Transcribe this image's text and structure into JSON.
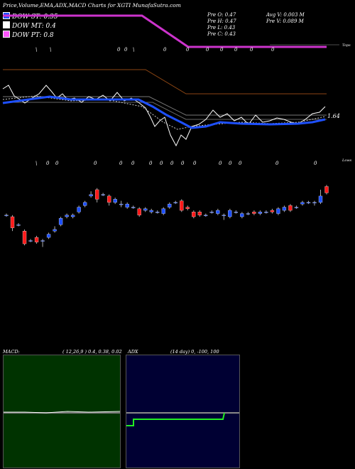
{
  "header": {
    "title": "Price,Volume,EMA,ADX,MACD Charts for XGTI MunafaSutra.com"
  },
  "legend": [
    {
      "label": "DOW ST: 0.35",
      "color": "#1e50ff"
    },
    {
      "label": "DOW MT: 0.4",
      "color": "#ffffff"
    },
    {
      "label": "DOW PT: 0.8",
      "color": "#ff55ff"
    }
  ],
  "stats": {
    "open": "Pre O: 0.47",
    "high": "Pre H: 0.47",
    "low": "Pre L: 0.43",
    "close": "Pre C: 0.43",
    "avg_volume": "Avg V: 0.003 M",
    "prev_volume": "Pre V: 0.089 M"
  },
  "ema_label": "1.64",
  "top_label": "Tops",
  "lows_label": "Lows",
  "tops_marks": [
    "\\",
    "\\",
    "0",
    "0",
    "\\",
    "0",
    "0",
    "0",
    "0",
    "0",
    "0",
    "0"
  ],
  "lows_marks": [
    "\\",
    "0",
    "0",
    "0",
    "0",
    "0",
    "0",
    "0",
    "0",
    "0",
    "0",
    "0",
    "0",
    "0",
    "0",
    "0",
    "0"
  ],
  "colors": {
    "up": "#1e50ff",
    "down": "#ff1a1a",
    "dow_pt": "#cc33cc",
    "macd_bg": "#003300",
    "adx_bg": "#000033",
    "adx_line": "#22ee22",
    "brown": "#8b4513"
  },
  "macd": {
    "label": "MACD:",
    "params": "( 12,26,9 ) 0.4, 0.38, 0.02"
  },
  "adx": {
    "label": "ADX",
    "params": "(14 day) 0, -100, 100"
  },
  "chart_data": {
    "type": "candlestick",
    "candles": [
      {
        "o": 0.58,
        "c": 0.58,
        "h": 0.59,
        "l": 0.57
      },
      {
        "o": 0.57,
        "c": 0.5,
        "h": 0.58,
        "l": 0.48
      },
      {
        "o": 0.52,
        "c": 0.52,
        "h": 0.53,
        "l": 0.51
      },
      {
        "o": 0.48,
        "c": 0.4,
        "h": 0.49,
        "l": 0.39
      },
      {
        "o": 0.42,
        "c": 0.42,
        "h": 0.43,
        "l": 0.41
      },
      {
        "o": 0.44,
        "c": 0.41,
        "h": 0.45,
        "l": 0.4
      },
      {
        "o": 0.42,
        "c": 0.42,
        "h": 0.43,
        "l": 0.38
      },
      {
        "o": 0.44,
        "c": 0.46,
        "h": 0.47,
        "l": 0.43
      },
      {
        "o": 0.48,
        "c": 0.49,
        "h": 0.51,
        "l": 0.47
      },
      {
        "o": 0.52,
        "c": 0.56,
        "h": 0.57,
        "l": 0.51
      },
      {
        "o": 0.57,
        "c": 0.58,
        "h": 0.59,
        "l": 0.56
      },
      {
        "o": 0.57,
        "c": 0.58,
        "h": 0.59,
        "l": 0.56
      },
      {
        "o": 0.6,
        "c": 0.63,
        "h": 0.64,
        "l": 0.59
      },
      {
        "o": 0.64,
        "c": 0.66,
        "h": 0.67,
        "l": 0.63
      },
      {
        "o": 0.7,
        "c": 0.71,
        "h": 0.73,
        "l": 0.69
      },
      {
        "o": 0.74,
        "c": 0.68,
        "h": 0.75,
        "l": 0.66
      },
      {
        "o": 0.71,
        "c": 0.71,
        "h": 0.72,
        "l": 0.7
      },
      {
        "o": 0.7,
        "c": 0.66,
        "h": 0.71,
        "l": 0.64
      },
      {
        "o": 0.66,
        "c": 0.68,
        "h": 0.69,
        "l": 0.65
      },
      {
        "o": 0.65,
        "c": 0.65,
        "h": 0.67,
        "l": 0.63
      },
      {
        "o": 0.63,
        "c": 0.65,
        "h": 0.66,
        "l": 0.62
      },
      {
        "o": 0.63,
        "c": 0.63,
        "h": 0.64,
        "l": 0.62
      },
      {
        "o": 0.62,
        "c": 0.58,
        "h": 0.63,
        "l": 0.57
      },
      {
        "o": 0.61,
        "c": 0.62,
        "h": 0.63,
        "l": 0.6
      },
      {
        "o": 0.6,
        "c": 0.61,
        "h": 0.62,
        "l": 0.59
      },
      {
        "o": 0.6,
        "c": 0.6,
        "h": 0.61,
        "l": 0.59
      },
      {
        "o": 0.59,
        "c": 0.62,
        "h": 0.63,
        "l": 0.58
      },
      {
        "o": 0.63,
        "c": 0.65,
        "h": 0.66,
        "l": 0.62
      },
      {
        "o": 0.66,
        "c": 0.66,
        "h": 0.67,
        "l": 0.65
      },
      {
        "o": 0.67,
        "c": 0.61,
        "h": 0.68,
        "l": 0.6
      },
      {
        "o": 0.63,
        "c": 0.62,
        "h": 0.64,
        "l": 0.61
      },
      {
        "o": 0.6,
        "c": 0.57,
        "h": 0.61,
        "l": 0.56
      },
      {
        "o": 0.6,
        "c": 0.58,
        "h": 0.61,
        "l": 0.57
      },
      {
        "o": 0.58,
        "c": 0.58,
        "h": 0.59,
        "l": 0.57
      },
      {
        "o": 0.6,
        "c": 0.6,
        "h": 0.61,
        "l": 0.59
      },
      {
        "o": 0.59,
        "c": 0.61,
        "h": 0.62,
        "l": 0.58
      },
      {
        "o": 0.58,
        "c": 0.58,
        "h": 0.59,
        "l": 0.55
      },
      {
        "o": 0.57,
        "c": 0.61,
        "h": 0.62,
        "l": 0.56
      },
      {
        "o": 0.6,
        "c": 0.6,
        "h": 0.61,
        "l": 0.59
      },
      {
        "o": 0.57,
        "c": 0.59,
        "h": 0.6,
        "l": 0.56
      },
      {
        "o": 0.59,
        "c": 0.59,
        "h": 0.6,
        "l": 0.58
      },
      {
        "o": 0.6,
        "c": 0.59,
        "h": 0.61,
        "l": 0.58
      },
      {
        "o": 0.59,
        "c": 0.6,
        "h": 0.61,
        "l": 0.58
      },
      {
        "o": 0.6,
        "c": 0.6,
        "h": 0.61,
        "l": 0.59
      },
      {
        "o": 0.61,
        "c": 0.6,
        "h": 0.62,
        "l": 0.59
      },
      {
        "o": 0.59,
        "c": 0.62,
        "h": 0.63,
        "l": 0.58
      },
      {
        "o": 0.61,
        "c": 0.63,
        "h": 0.64,
        "l": 0.6
      },
      {
        "o": 0.64,
        "c": 0.61,
        "h": 0.65,
        "l": 0.6
      },
      {
        "o": 0.63,
        "c": 0.63,
        "h": 0.64,
        "l": 0.62
      },
      {
        "o": 0.65,
        "c": 0.66,
        "h": 0.67,
        "l": 0.64
      },
      {
        "o": 0.66,
        "c": 0.66,
        "h": 0.67,
        "l": 0.65
      },
      {
        "o": 0.66,
        "c": 0.66,
        "h": 0.67,
        "l": 0.64
      },
      {
        "o": 0.66,
        "c": 0.7,
        "h": 0.74,
        "l": 0.65
      },
      {
        "o": 0.76,
        "c": 0.72,
        "h": 0.77,
        "l": 0.71
      }
    ]
  }
}
